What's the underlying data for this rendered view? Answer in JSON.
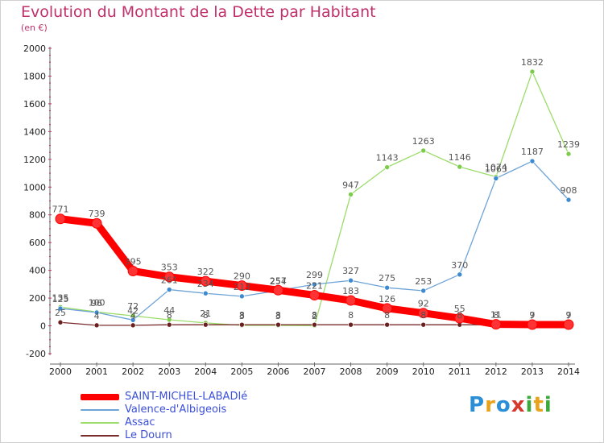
{
  "title": "Evolution du Montant de la Dette par Habitant",
  "subtitle": "(en €)",
  "logo": {
    "text": "Proxiti",
    "letters": [
      {
        "ch": "P",
        "color": "#2a8fd6"
      },
      {
        "ch": "r",
        "color": "#e8a21c"
      },
      {
        "ch": "o",
        "color": "#2a8fd6"
      },
      {
        "ch": "x",
        "color": "#d6382e"
      },
      {
        "ch": "i",
        "color": "#3aa83a"
      },
      {
        "ch": "t",
        "color": "#e8a21c"
      },
      {
        "ch": "i",
        "color": "#3aa83a"
      }
    ]
  },
  "chart_data": {
    "type": "line",
    "x": [
      2000,
      2001,
      2002,
      2003,
      2004,
      2005,
      2006,
      2007,
      2008,
      2009,
      2010,
      2011,
      2012,
      2013,
      2014
    ],
    "ylim": [
      -200,
      2000
    ],
    "yticks": [
      -200,
      0,
      200,
      400,
      600,
      800,
      1000,
      1200,
      1400,
      1600,
      1800,
      2000
    ],
    "grid": false,
    "legend": "bottom-left",
    "series": [
      {
        "name": "SAINT-MICHEL-LABADIé",
        "color": "#ff0000",
        "marker_color": "#ff3333",
        "width": 9,
        "values": [
          771,
          739,
          395,
          353,
          322,
          290,
          257,
          221,
          183,
          126,
          92,
          55,
          11,
          9,
          9
        ],
        "labels": [
          "771",
          "739",
          "395",
          "353",
          "322",
          "290",
          "257",
          "221",
          "183",
          "126",
          "92",
          "55",
          "11",
          "9",
          "9"
        ]
      },
      {
        "name": "Valence-d'Albigeois",
        "color": "#6ea3d6",
        "marker_color": "#3d8ad0",
        "width": 1.3,
        "values": [
          125,
          96,
          42,
          261,
          234,
          213,
          254,
          299,
          327,
          275,
          253,
          370,
          1063,
          1187,
          908
        ],
        "labels": [
          "125",
          "96",
          "42",
          "261",
          "234",
          "213",
          "254",
          "299",
          "327",
          "275",
          "253",
          "370",
          "1063",
          "1187",
          "908"
        ]
      },
      {
        "name": "Assac",
        "color": "#9bdc6a",
        "marker_color": "#7ccc4a",
        "width": 1.3,
        "values": [
          135,
          100,
          72,
          44,
          21,
          3,
          3,
          2,
          947,
          1143,
          1263,
          1146,
          1074,
          1832,
          1239
        ],
        "labels": [
          "135",
          "100",
          "72",
          "44",
          "21",
          "3",
          "3",
          "2",
          "947",
          "1143",
          "1263",
          "1146",
          "1074",
          "1832",
          "1239"
        ]
      },
      {
        "name": "Le Dourn",
        "color": "#7a2b2b",
        "marker_color": "#6b2020",
        "width": 1.3,
        "values": [
          25,
          4,
          4,
          8,
          8,
          8,
          8,
          8,
          8,
          8,
          8,
          8,
          8,
          7,
          7
        ],
        "labels": [
          "25",
          "4",
          "4",
          "8",
          "8",
          "8",
          "8",
          "8",
          "8",
          "8",
          "8",
          "8",
          "8",
          "7",
          "7"
        ]
      }
    ]
  }
}
